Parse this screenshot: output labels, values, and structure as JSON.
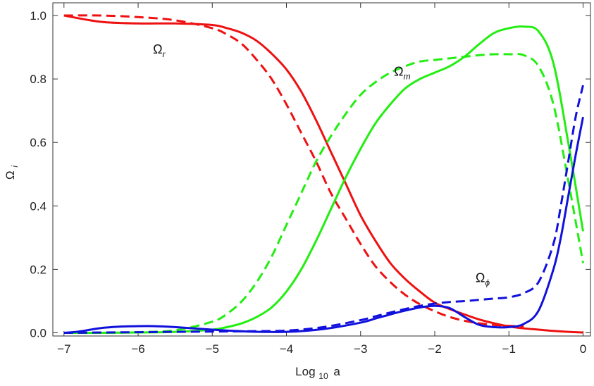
{
  "chart_data": {
    "type": "line",
    "title": "",
    "xlabel": "Log",
    "xlabel_sub": "10",
    "xlabel_tail": "a",
    "ylabel": "Ω",
    "ylabel_sub": "i",
    "xlim": [
      -7.15,
      0.1
    ],
    "ylim": [
      -0.01,
      1.04
    ],
    "x_ticks": [
      -7,
      -6,
      -5,
      -4,
      -3,
      -2,
      -1,
      0
    ],
    "x_tick_labels": [
      "−7",
      "−6",
      "−5",
      "−4",
      "−3",
      "−2",
      "−1",
      "0"
    ],
    "y_ticks": [
      0.0,
      0.2,
      0.4,
      0.6,
      0.8,
      1.0
    ],
    "y_tick_labels": [
      "0.0",
      "0.2",
      "0.4",
      "0.6",
      "0.8",
      "1.0"
    ],
    "grid": false,
    "colors": {
      "red": "#ee1111",
      "green": "#22ee11",
      "blue": "#1111dd",
      "frame": "#333333"
    },
    "annotations": [
      {
        "main": "Ω",
        "sub": "r",
        "x": -5.8,
        "y": 0.88
      },
      {
        "main": "Ω",
        "sub": "m",
        "x": -2.55,
        "y": 0.81
      },
      {
        "main": "Ω",
        "sub": "ϕ",
        "x": -1.45,
        "y": 0.16
      }
    ],
    "series": [
      {
        "key": "r_solid",
        "color": "red",
        "dash": false,
        "x": [
          -7,
          -6.5,
          -6,
          -5.5,
          -5,
          -4.8,
          -4.6,
          -4.4,
          -4.2,
          -4,
          -3.8,
          -3.6,
          -3.4,
          -3.2,
          -3,
          -2.8,
          -2.6,
          -2.4,
          -2.2,
          -2,
          -1.8,
          -1.6,
          -1.4,
          -1.2,
          -1,
          -0.8,
          -0.6,
          -0.4,
          -0.2,
          0
        ],
        "y": [
          1.0,
          0.98,
          0.975,
          0.975,
          0.97,
          0.96,
          0.945,
          0.92,
          0.88,
          0.83,
          0.76,
          0.67,
          0.57,
          0.47,
          0.37,
          0.29,
          0.22,
          0.17,
          0.13,
          0.095,
          0.075,
          0.058,
          0.042,
          0.03,
          0.02,
          0.014,
          0.01,
          0.006,
          0.003,
          0.001
        ]
      },
      {
        "key": "r_dashed",
        "color": "red",
        "dash": true,
        "x": [
          -7,
          -6.5,
          -6,
          -5.5,
          -5,
          -4.8,
          -4.6,
          -4.4,
          -4.2,
          -4,
          -3.8,
          -3.6,
          -3.4,
          -3.2,
          -3,
          -2.8,
          -2.6,
          -2.4,
          -2.2,
          -2,
          -1.8,
          -1.6,
          -1.4,
          -1.2,
          -1,
          -0.8
        ],
        "y": [
          1.0,
          1.0,
          0.995,
          0.985,
          0.96,
          0.94,
          0.91,
          0.86,
          0.8,
          0.72,
          0.63,
          0.54,
          0.44,
          0.36,
          0.28,
          0.21,
          0.16,
          0.12,
          0.09,
          0.068,
          0.05,
          0.038,
          0.03,
          0.025,
          0.022,
          0.02
        ]
      },
      {
        "key": "m_solid",
        "color": "green",
        "dash": false,
        "x": [
          -7,
          -6.5,
          -6,
          -5.5,
          -5,
          -4.8,
          -4.6,
          -4.4,
          -4.2,
          -4,
          -3.8,
          -3.6,
          -3.4,
          -3.2,
          -3,
          -2.8,
          -2.6,
          -2.4,
          -2.2,
          -2,
          -1.8,
          -1.6,
          -1.4,
          -1.2,
          -1,
          -0.8,
          -0.6,
          -0.4,
          -0.2,
          0
        ],
        "y": [
          0.0,
          0.0,
          0.001,
          0.003,
          0.01,
          0.018,
          0.03,
          0.05,
          0.08,
          0.13,
          0.2,
          0.29,
          0.39,
          0.49,
          0.58,
          0.66,
          0.72,
          0.77,
          0.8,
          0.82,
          0.84,
          0.87,
          0.91,
          0.945,
          0.96,
          0.965,
          0.95,
          0.85,
          0.6,
          0.32
        ]
      },
      {
        "key": "m_dashed",
        "color": "green",
        "dash": true,
        "x": [
          -7,
          -6.5,
          -6,
          -5.5,
          -5,
          -4.8,
          -4.6,
          -4.4,
          -4.2,
          -4,
          -3.8,
          -3.6,
          -3.4,
          -3.2,
          -3,
          -2.8,
          -2.6,
          -2.4,
          -2.2,
          -2,
          -1.8,
          -1.6,
          -1.4,
          -1.2,
          -1,
          -0.8,
          -0.6,
          -0.4,
          -0.2,
          0
        ],
        "y": [
          0.0,
          0.0,
          0.002,
          0.008,
          0.035,
          0.06,
          0.1,
          0.16,
          0.24,
          0.34,
          0.44,
          0.54,
          0.62,
          0.69,
          0.75,
          0.79,
          0.82,
          0.84,
          0.855,
          0.86,
          0.865,
          0.87,
          0.875,
          0.878,
          0.878,
          0.875,
          0.84,
          0.72,
          0.48,
          0.22
        ]
      },
      {
        "key": "phi_solid",
        "color": "blue",
        "dash": false,
        "x": [
          -7,
          -6.8,
          -6.5,
          -6.2,
          -6,
          -5.8,
          -5.5,
          -5,
          -4.5,
          -4,
          -3.5,
          -3,
          -2.8,
          -2.6,
          -2.4,
          -2.2,
          -2,
          -1.8,
          -1.6,
          -1.4,
          -1.2,
          -1,
          -0.8,
          -0.6,
          -0.4,
          -0.3,
          -0.2,
          -0.1,
          0
        ],
        "y": [
          0.0,
          0.004,
          0.015,
          0.02,
          0.021,
          0.021,
          0.018,
          0.01,
          0.004,
          0.003,
          0.012,
          0.032,
          0.045,
          0.058,
          0.07,
          0.08,
          0.085,
          0.078,
          0.05,
          0.025,
          0.018,
          0.018,
          0.028,
          0.07,
          0.2,
          0.3,
          0.43,
          0.56,
          0.68
        ]
      },
      {
        "key": "phi_dashed",
        "color": "blue",
        "dash": true,
        "x": [
          -7,
          -6.5,
          -6,
          -5.5,
          -5,
          -4.5,
          -4,
          -3.5,
          -3,
          -2.8,
          -2.6,
          -2.4,
          -2.2,
          -2,
          -1.8,
          -1.6,
          -1.4,
          -1.2,
          -1,
          -0.8,
          -0.6,
          -0.4,
          -0.3,
          -0.2,
          -0.1,
          0
        ],
        "y": [
          0.0,
          0.001,
          0.002,
          0.003,
          0.004,
          0.005,
          0.007,
          0.018,
          0.04,
          0.052,
          0.064,
          0.075,
          0.085,
          0.092,
          0.097,
          0.1,
          0.104,
          0.108,
          0.112,
          0.125,
          0.16,
          0.28,
          0.4,
          0.54,
          0.68,
          0.78
        ]
      }
    ]
  }
}
